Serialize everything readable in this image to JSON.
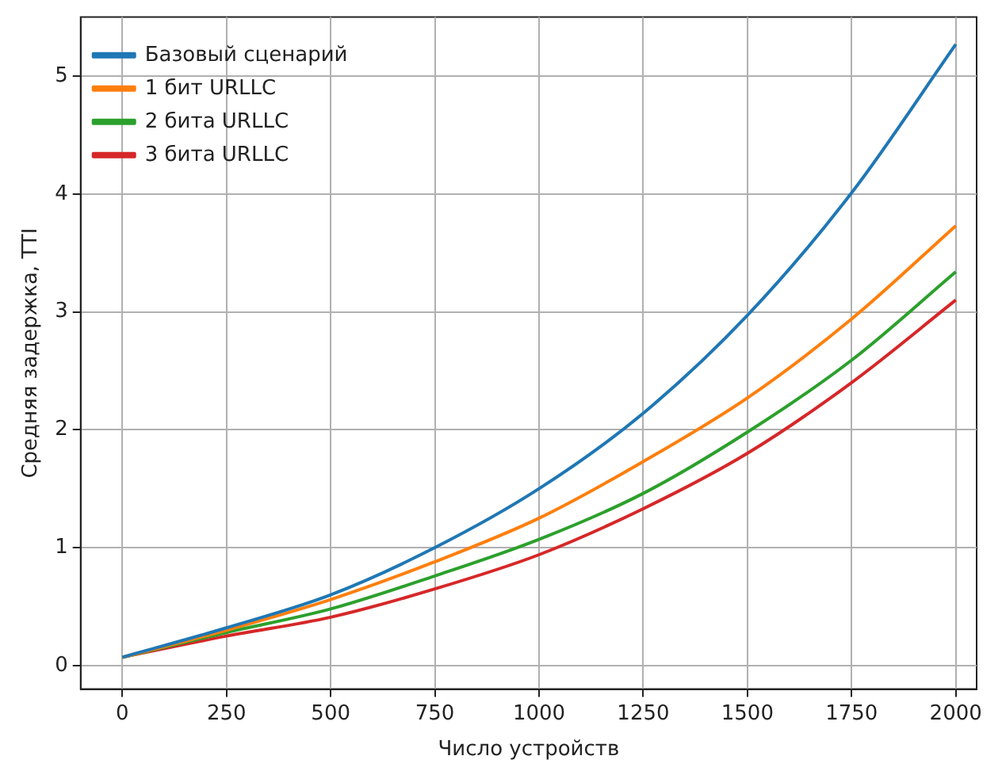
{
  "chart_data": {
    "type": "line",
    "xlabel": "Число устройств",
    "ylabel": "Средняя задержка, TTI",
    "x": [
      0,
      250,
      500,
      750,
      1000,
      1250,
      1500,
      1750,
      2000
    ],
    "series": [
      {
        "name": "Базовый сценарий",
        "color": "#1f77b4",
        "values": [
          0.07,
          0.32,
          0.6,
          1.0,
          1.5,
          2.14,
          2.97,
          4.01,
          5.27
        ]
      },
      {
        "name": "1 бит URLLC",
        "color": "#ff7f0e",
        "values": [
          0.07,
          0.3,
          0.56,
          0.88,
          1.25,
          1.73,
          2.27,
          2.94,
          3.73
        ]
      },
      {
        "name": "2 бита URLLC",
        "color": "#2ca02c",
        "values": [
          0.07,
          0.28,
          0.48,
          0.76,
          1.07,
          1.46,
          1.98,
          2.59,
          3.34
        ]
      },
      {
        "name": "3 бита URLLC",
        "color": "#d62728",
        "values": [
          0.07,
          0.25,
          0.41,
          0.65,
          0.94,
          1.33,
          1.8,
          2.4,
          3.1
        ]
      }
    ],
    "xlim": [
      -100,
      2050
    ],
    "xticks": [
      0,
      250,
      500,
      750,
      1000,
      1250,
      1500,
      1750,
      2000
    ],
    "ylim": [
      -0.2,
      5.5
    ],
    "yticks": [
      0,
      1,
      2,
      3,
      4,
      5
    ],
    "grid": true,
    "legend": "top left",
    "marker": "none",
    "line_style": "solid"
  }
}
